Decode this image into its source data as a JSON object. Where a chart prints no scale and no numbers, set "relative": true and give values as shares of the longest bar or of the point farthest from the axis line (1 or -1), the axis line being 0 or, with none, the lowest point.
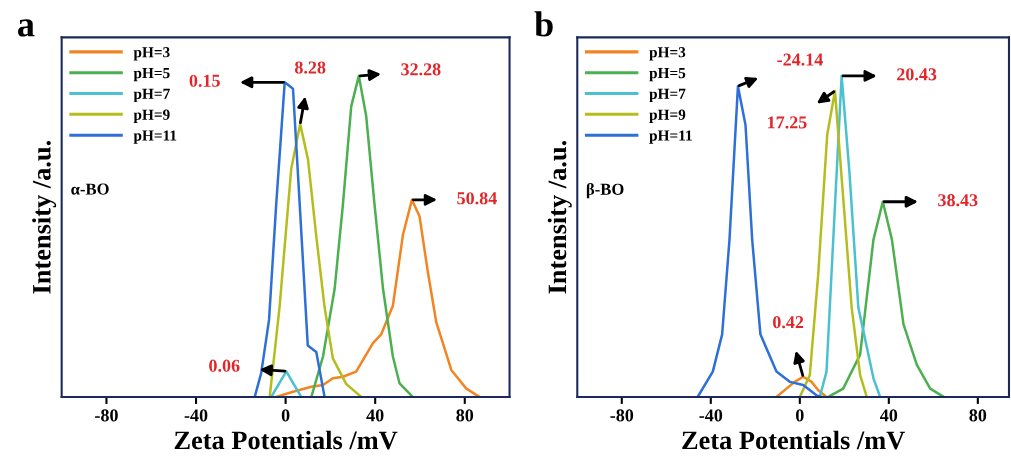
{
  "chart_data": [
    {
      "type": "line",
      "title": "a",
      "xlabel": "Zeta Potentials /mV",
      "ylabel": "Intensity /a.u.",
      "relative": true,
      "xlim": [
        -100,
        100
      ],
      "xticks": [
        -80,
        -40,
        0,
        40,
        80
      ],
      "grid": false,
      "legend": "top left",
      "marker": "none",
      "line_style": "solid",
      "series": [
        {
          "name": "pH=3",
          "color": "#f28522",
          "x": [
            -4.2,
            3.3,
            11.5,
            16.7,
            21.1,
            25.6,
            31.5,
            39.0,
            42.7,
            47.9,
            52.4,
            56.4,
            59.8,
            63.5,
            67.3,
            74.0,
            80.7,
            86.6
          ],
          "values": [
            0,
            0.016,
            0.032,
            0.037,
            0.058,
            0.063,
            0.079,
            0.168,
            0.195,
            0.284,
            0.505,
            0.614,
            0.563,
            0.39,
            0.232,
            0.084,
            0.026,
            0
          ]
        },
        {
          "name": "pH=5",
          "color": "#4caf50",
          "x": [
            11.5,
            16.7,
            21.9,
            25.6,
            29.3,
            32.7,
            36.0,
            39.7,
            43.5,
            47.9,
            50.9,
            56.8
          ],
          "values": [
            0,
            0.126,
            0.337,
            0.6,
            0.905,
            1,
            0.874,
            0.6,
            0.337,
            0.126,
            0.042,
            0
          ]
        },
        {
          "name": "pH=7",
          "color": "#4bc0cf",
          "x": [
            -6.4,
            0.3,
            7.0
          ],
          "values": [
            0,
            0.08,
            0
          ]
        },
        {
          "name": "pH=9",
          "color": "#b5bd1e",
          "x": [
            -7.1,
            -2.7,
            2.5,
            6.5,
            10.0,
            13.7,
            17.4,
            21.1,
            27.1,
            33.8
          ],
          "values": [
            0,
            0.28,
            0.71,
            0.85,
            0.74,
            0.5,
            0.28,
            0.12,
            0.04,
            0
          ]
        },
        {
          "name": "pH=11",
          "color": "#2e6fd8",
          "x": [
            -13.8,
            -10.9,
            -7.4,
            -4.2,
            -0.4,
            3.3,
            6.3,
            9.9,
            13.7,
            17.4
          ],
          "values": [
            0,
            0.074,
            0.24,
            0.6,
            0.98,
            0.96,
            0.6,
            0.16,
            0.14,
            0
          ]
        }
      ],
      "annotations": [
        "α-BO",
        {
          "text": "0.15",
          "x": -0.4,
          "y": 0.98
        },
        {
          "text": "8.28",
          "x": 6.5,
          "y": 0.85
        },
        {
          "text": "32.28",
          "x": 32.7,
          "y": 1
        },
        {
          "text": "50.84",
          "x": 56.4,
          "y": 0.614
        },
        {
          "text": "0.06",
          "x": 0.3,
          "y": 0.08
        }
      ]
    },
    {
      "type": "line",
      "title": "b",
      "xlabel": "Zeta Potentials /mV",
      "ylabel": "Intensity /a.u.",
      "relative": true,
      "xlim": [
        -100,
        94
      ],
      "xticks": [
        -80,
        -40,
        0,
        40,
        80
      ],
      "grid": false,
      "legend": "top left",
      "marker": "none",
      "line_style": "solid",
      "series": [
        {
          "name": "pH=3",
          "color": "#f28522",
          "x": [
            -10.5,
            -6.0,
            -2.3,
            1.5,
            5.3,
            8.3,
            12.0
          ],
          "values": [
            0,
            0.026,
            0.047,
            0.063,
            0.047,
            0.021,
            0
          ]
        },
        {
          "name": "pH=5",
          "color": "#4caf50",
          "x": [
            12.8,
            19.5,
            27.1,
            33.1,
            37.3,
            41.4,
            46.6,
            52.6,
            58.6,
            64.7
          ],
          "values": [
            0,
            0.026,
            0.132,
            0.49,
            0.608,
            0.49,
            0.226,
            0.1,
            0.026,
            0
          ]
        },
        {
          "name": "pH=7",
          "color": "#4bc0cf",
          "x": [
            9.0,
            12.0,
            15.8,
            18.8,
            22.3,
            26.3,
            33.1,
            36.1
          ],
          "values": [
            0,
            0.079,
            0.595,
            1,
            0.7,
            0.279,
            0.058,
            0
          ]
        },
        {
          "name": "pH=9",
          "color": "#b5bd1e",
          "x": [
            0,
            4.5,
            8.3,
            12.3,
            15.8,
            19.2,
            23.3,
            27.1,
            30.1
          ],
          "values": [
            0,
            0.068,
            0.384,
            0.816,
            0.953,
            0.647,
            0.279,
            0.068,
            0
          ]
        },
        {
          "name": "pH=11",
          "color": "#2e6fd8",
          "x": [
            -45.9,
            -39.1,
            -34.9,
            -31.6,
            -27.8,
            -24.4,
            -21.4,
            -17.7,
            -10.5,
            -4.5,
            1.5,
            7.5,
            9.8
          ],
          "values": [
            0,
            0.079,
            0.195,
            0.49,
            0.968,
            0.847,
            0.49,
            0.195,
            0.079,
            0.047,
            0.037,
            0.005,
            0
          ]
        }
      ],
      "annotations": [
        "β-BO",
        {
          "text": "-24.14",
          "x": -27.8,
          "y": 0.968
        },
        {
          "text": "20.43",
          "x": 18.8,
          "y": 1
        },
        {
          "text": "17.25",
          "x": 15.8,
          "y": 0.953
        },
        {
          "text": "38.43",
          "x": 37.3,
          "y": 0.608
        },
        {
          "text": "0.42",
          "x": 1.5,
          "y": 0.063
        }
      ]
    }
  ]
}
